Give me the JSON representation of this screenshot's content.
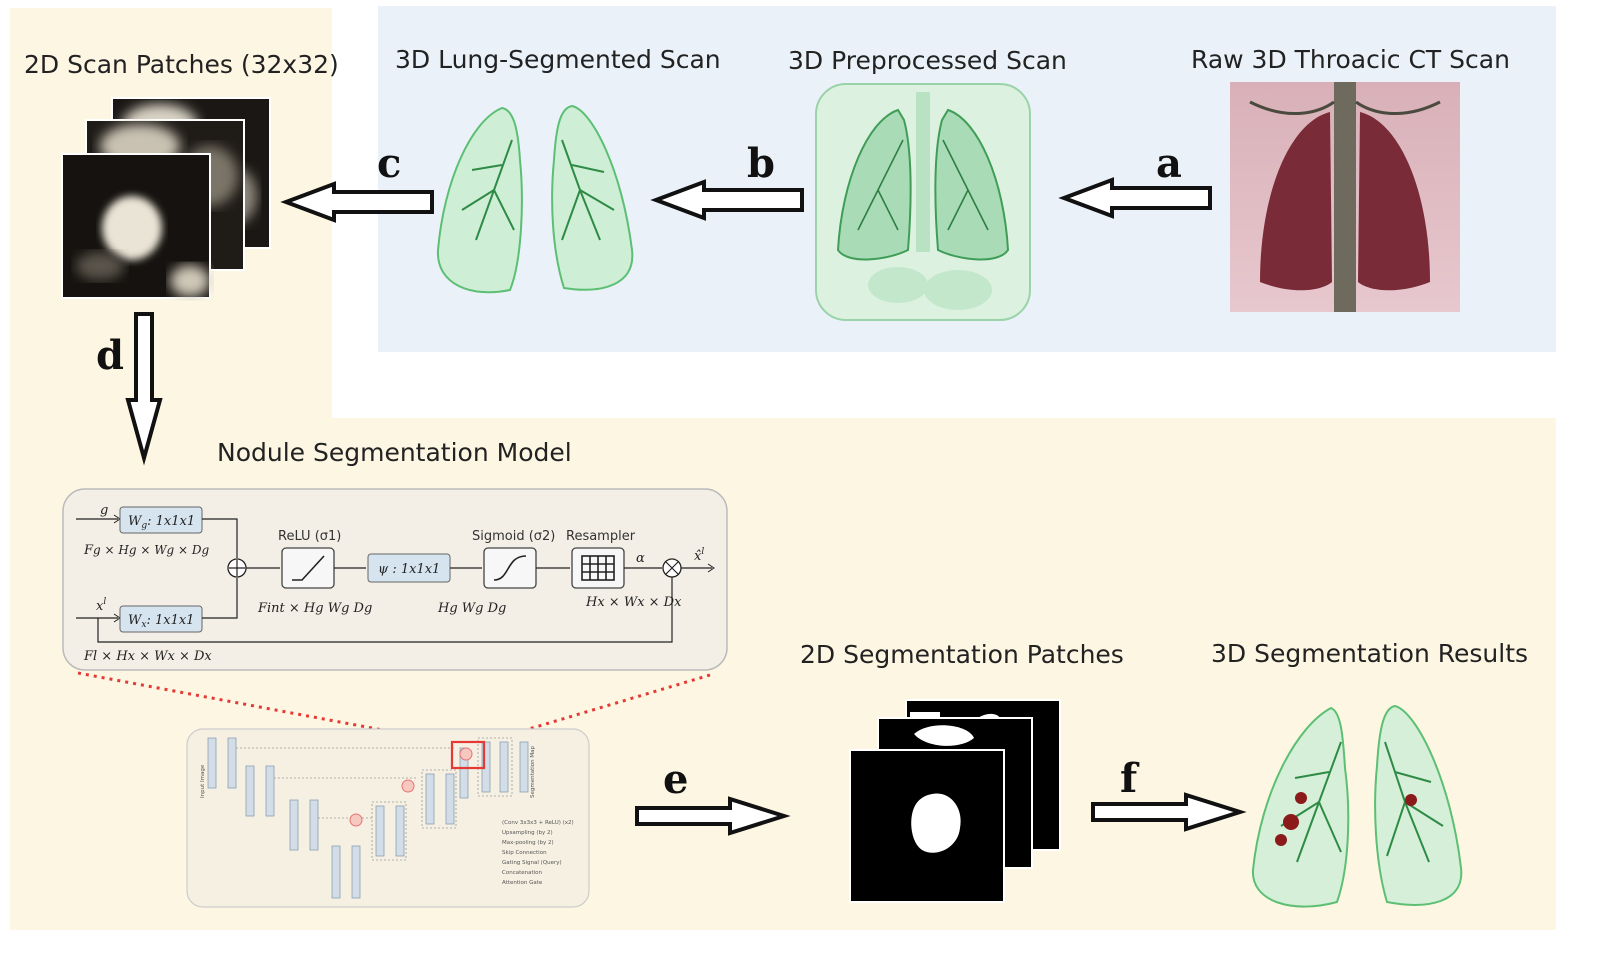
{
  "titles": {
    "scan_patches": "2D Scan Patches (32x32)",
    "lung_segmented": "3D Lung-Segmented Scan",
    "preprocessed": "3D Preprocessed Scan",
    "raw_ct": "Raw 3D Throacic CT Scan",
    "model": "Nodule Segmentation Model",
    "seg_patches": "2D Segmentation Patches",
    "seg_results": "3D Segmentation Results"
  },
  "step_labels": {
    "a": "a",
    "b": "b",
    "c": "c",
    "d": "d",
    "e": "e",
    "f": "f"
  },
  "attention_gate": {
    "g_input": "g",
    "x_input": "x",
    "x_sup": "l",
    "wg_box": "W",
    "wg_sub": "g",
    "wg_kernel": ": 1x1x1",
    "wx_box": "W",
    "wx_sub": "x",
    "wx_kernel": ": 1x1x1",
    "g_dims": "F",
    "g_dims_rest": "g × Hg × Wg × Dg",
    "x_dims": "Fl × Hx × Wx × Dx",
    "relu_label": "ReLU (σ1)",
    "psi_box": "ψ : 1x1x1",
    "sigmoid_label": "Sigmoid (σ2)",
    "resampler_label": "Resampler",
    "fint_dims": "Fint × Hg Wg Dg",
    "hg_dims": "Hg Wg Dg",
    "hx_dims": "Hx × Wx × Dx",
    "alpha": "α",
    "output": "x̂",
    "output_sup": "l"
  },
  "unet": {
    "input_label": "Input Image",
    "output_label": "Segmentation Map",
    "legend": [
      "(Conv 3x3x3 + ReLU) (x2)",
      "Upsampling (by 2)",
      "Max-pooling (by 2)",
      "Skip Connection",
      "Gating Signal (Query)",
      "Concatenation",
      "Attention Gate"
    ]
  },
  "colors": {
    "cream_panel": "#fdf6e3",
    "blue_panel": "#eaf1f9",
    "lung_green": "#3aa655",
    "ct_pink": "#c98d9b",
    "highlight_red": "#e53935",
    "box_fill": "#d6e4f0"
  }
}
